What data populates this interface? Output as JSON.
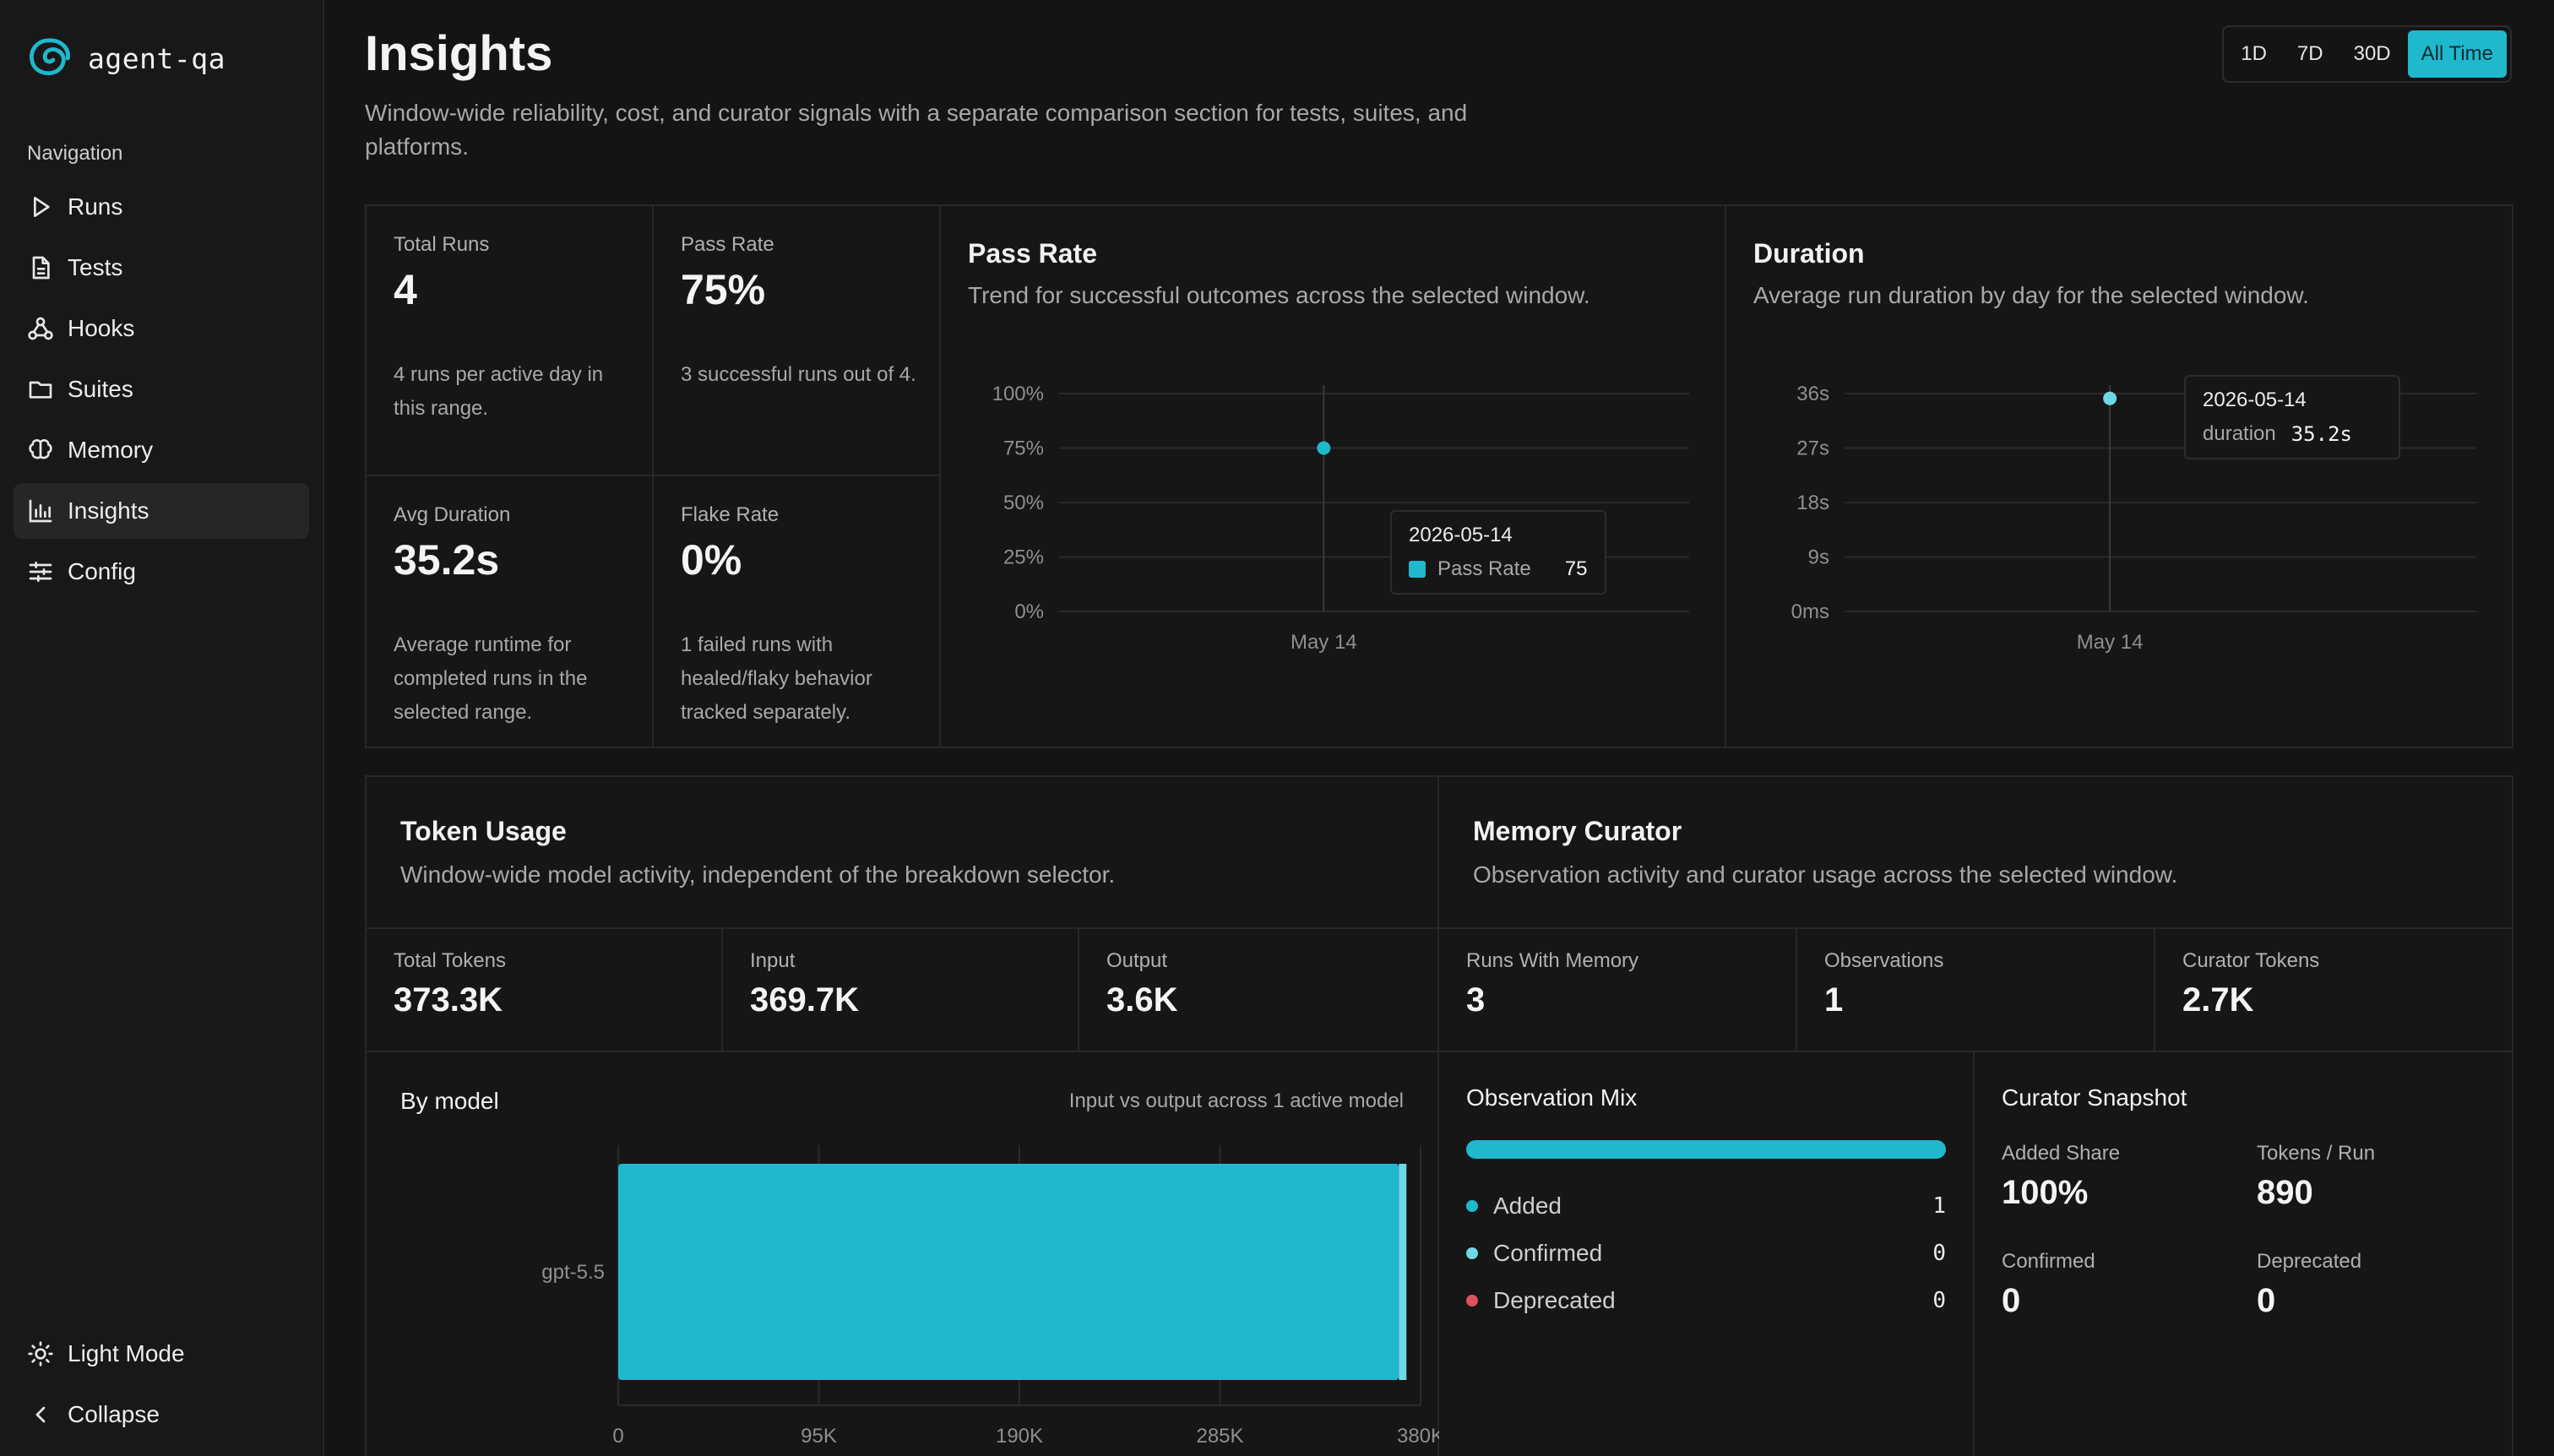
{
  "app": {
    "name": "agent-qa"
  },
  "sidebar": {
    "heading": "Navigation",
    "items": [
      {
        "label": "Runs",
        "icon": "play-icon"
      },
      {
        "label": "Tests",
        "icon": "file-icon"
      },
      {
        "label": "Hooks",
        "icon": "webhook-icon"
      },
      {
        "label": "Suites",
        "icon": "folder-icon"
      },
      {
        "label": "Memory",
        "icon": "brain-icon"
      },
      {
        "label": "Insights",
        "icon": "bar-chart-icon",
        "active": true
      },
      {
        "label": "Config",
        "icon": "sliders-icon"
      }
    ],
    "bottom": {
      "theme_label": "Light Mode",
      "collapse_label": "Collapse"
    }
  },
  "header": {
    "title": "Insights",
    "subtitle": "Window-wide reliability, cost, and curator signals with a separate comparison section for tests, suites, and platforms.",
    "ranges": [
      "1D",
      "7D",
      "30D",
      "All Time"
    ],
    "selected_range": "All Time"
  },
  "stats": {
    "total_runs": {
      "label": "Total Runs",
      "value": "4",
      "note": "4 runs per active day in this range."
    },
    "pass_rate": {
      "label": "Pass Rate",
      "value": "75%",
      "note": "3 successful runs out of 4."
    },
    "avg_duration": {
      "label": "Avg Duration",
      "value": "35.2s",
      "note": "Average runtime for completed runs in the selected range."
    },
    "flake_rate": {
      "label": "Flake Rate",
      "value": "0%",
      "note": "1 failed runs with healed/flaky behavior tracked separately."
    }
  },
  "pass_rate_chart": {
    "title": "Pass Rate",
    "subtitle": "Trend for successful outcomes across the selected window.",
    "tooltip": {
      "date": "2026-05-14",
      "series": "Pass Rate",
      "value": "75"
    }
  },
  "duration_chart": {
    "title": "Duration",
    "subtitle": "Average run duration by day for the selected window.",
    "tooltip": {
      "date": "2026-05-14",
      "series": "duration",
      "value": "35.2s"
    }
  },
  "token_usage": {
    "title": "Token Usage",
    "subtitle": "Window-wide model activity, independent of the breakdown selector.",
    "kpis": [
      {
        "label": "Total Tokens",
        "value": "373.3K"
      },
      {
        "label": "Input",
        "value": "369.7K"
      },
      {
        "label": "Output",
        "value": "3.6K"
      }
    ],
    "by_model": {
      "title": "By model",
      "note": "Input vs output across 1 active model"
    }
  },
  "memory_curator": {
    "title": "Memory Curator",
    "subtitle": "Observation activity and curator usage across the selected window.",
    "kpis": [
      {
        "label": "Runs With Memory",
        "value": "3"
      },
      {
        "label": "Observations",
        "value": "1"
      },
      {
        "label": "Curator Tokens",
        "value": "2.7K"
      }
    ],
    "observation_mix": {
      "title": "Observation Mix",
      "items": [
        {
          "label": "Added",
          "count": "1",
          "color": "#1fb8cd"
        },
        {
          "label": "Confirmed",
          "count": "0",
          "color": "#6fd7e6"
        },
        {
          "label": "Deprecated",
          "count": "0",
          "color": "#e0515f"
        }
      ]
    },
    "snapshot": {
      "title": "Curator Snapshot",
      "added_share": {
        "label": "Added Share",
        "value": "100%"
      },
      "tokens_per_run": {
        "label": "Tokens / Run",
        "value": "890"
      },
      "confirmed": {
        "label": "Confirmed",
        "value": "0"
      },
      "deprecated": {
        "label": "Deprecated",
        "value": "0"
      }
    }
  },
  "colors": {
    "accent": "#1fb8cd",
    "accent_light": "#6fd7e6",
    "danger": "#e0515f"
  },
  "chart_data": [
    {
      "type": "line",
      "title": "Pass Rate",
      "x": [
        "May 14"
      ],
      "series": [
        {
          "name": "Pass Rate",
          "values": [
            75
          ]
        }
      ],
      "yticks": [
        "0%",
        "25%",
        "50%",
        "75%",
        "100%"
      ],
      "ylim": [
        0,
        100
      ]
    },
    {
      "type": "line",
      "title": "Duration",
      "x": [
        "May 14"
      ],
      "series": [
        {
          "name": "duration",
          "values": [
            35.2
          ]
        }
      ],
      "yticks": [
        "0ms",
        "9s",
        "18s",
        "27s",
        "36s"
      ],
      "ylim": [
        0,
        36
      ]
    },
    {
      "type": "bar",
      "title": "By model",
      "orientation": "horizontal",
      "stacked": true,
      "categories": [
        "gpt-5.5"
      ],
      "series": [
        {
          "values": [
            369700
          ]
        },
        {
          "values": [
            3600
          ]
        }
      ],
      "xticks": [
        "0",
        "95K",
        "190K",
        "285K",
        "380K"
      ],
      "xlim": [
        0,
        380000
      ]
    }
  ]
}
